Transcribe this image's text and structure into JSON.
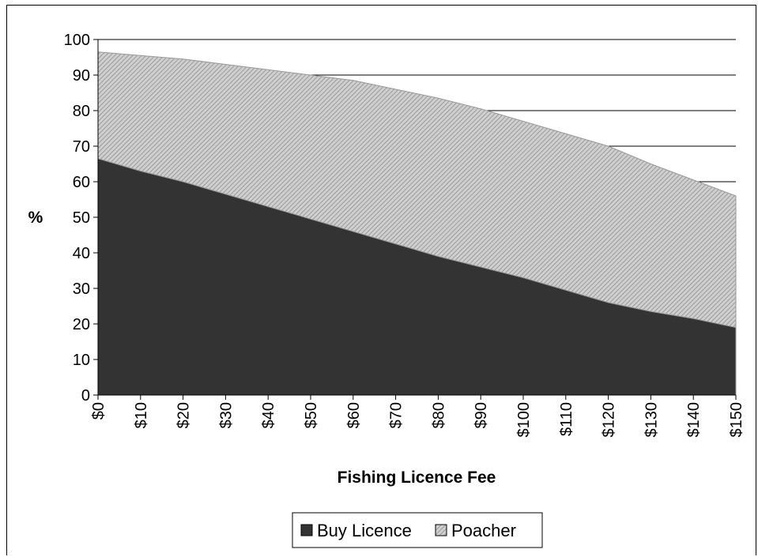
{
  "chart_data": {
    "type": "area",
    "stacked": true,
    "categories": [
      "$0",
      "$10",
      "$20",
      "$30",
      "$40",
      "$50",
      "$60",
      "$70",
      "$80",
      "$90",
      "$100",
      "$110",
      "$120",
      "$130",
      "$140",
      "$150"
    ],
    "series": [
      {
        "name": "Buy Licence",
        "color": "#333333",
        "values": [
          66.5,
          63,
          60,
          56.5,
          53,
          49.5,
          46,
          42.5,
          39,
          36,
          33,
          29.5,
          26,
          23.5,
          21.5,
          19
        ]
      },
      {
        "name": "Poacher",
        "color": "#b8b8b8",
        "values": [
          30,
          32.5,
          34.5,
          36.5,
          38.5,
          40.5,
          42.5,
          43.5,
          44.5,
          44.5,
          44,
          44,
          44,
          41.5,
          39,
          37
        ]
      }
    ],
    "xlabel": "Fishing Licence Fee",
    "ylabel": "%",
    "ylim": [
      0,
      100
    ],
    "yticks": [
      "0",
      "10",
      "20",
      "30",
      "40",
      "50",
      "60",
      "70",
      "80",
      "90",
      "100"
    ],
    "grid": true,
    "legend": "bottom"
  }
}
